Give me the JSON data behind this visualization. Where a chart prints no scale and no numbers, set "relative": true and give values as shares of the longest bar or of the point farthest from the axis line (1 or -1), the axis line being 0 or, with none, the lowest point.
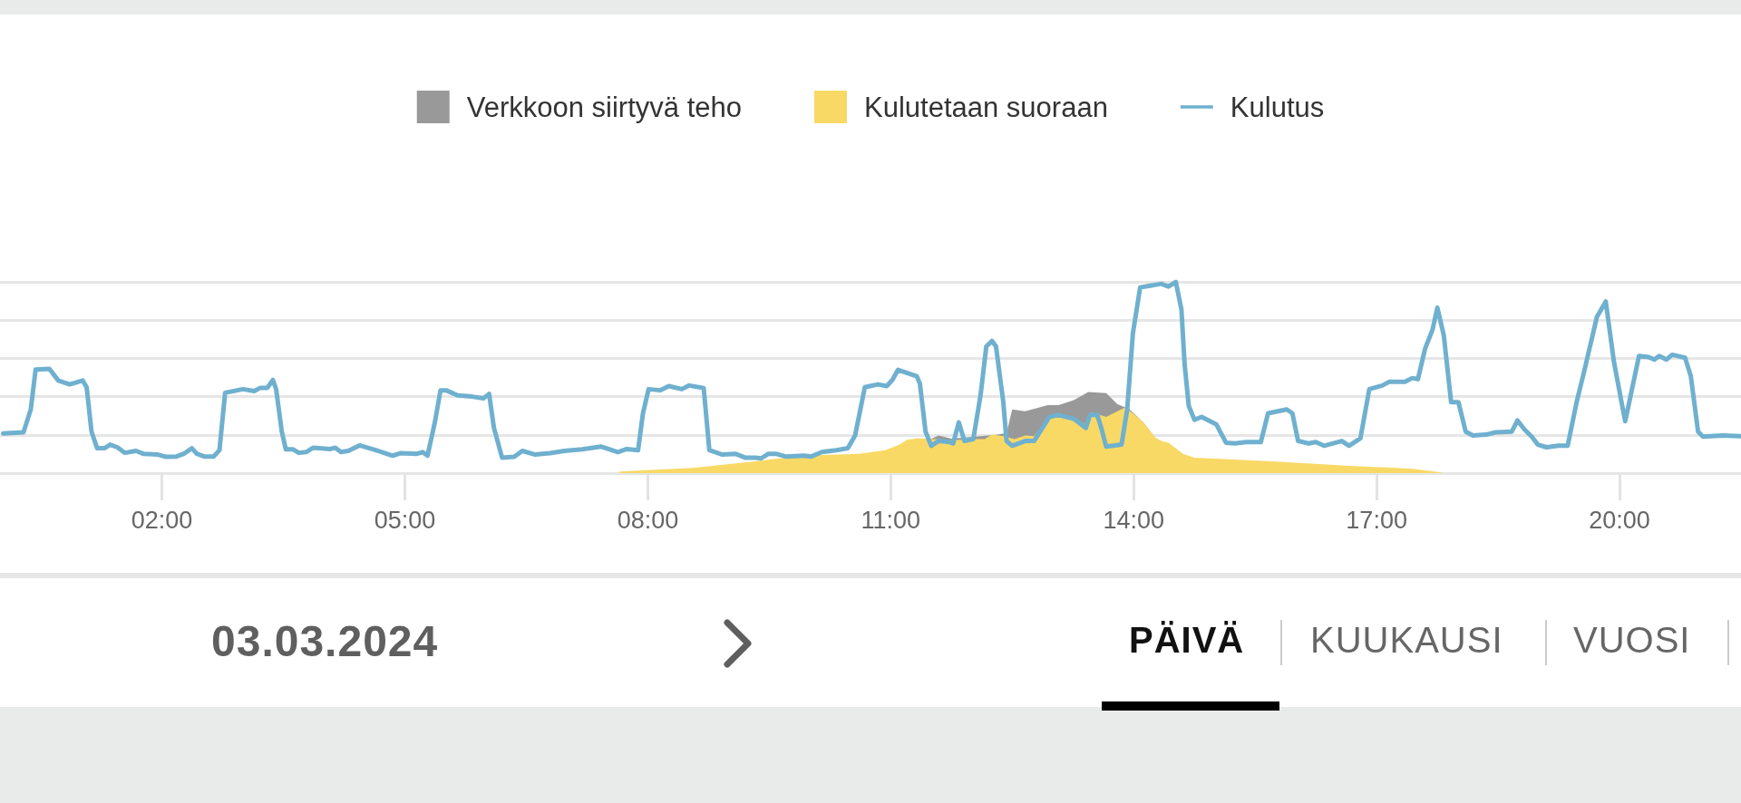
{
  "chart_data": {
    "type": "area",
    "relative": true,
    "grid": "y",
    "legend": "top",
    "xlim": [
      0,
      21.5
    ],
    "xticks": [
      {
        "value": 2,
        "label": "02:00"
      },
      {
        "value": 5,
        "label": "05:00"
      },
      {
        "value": 8,
        "label": "08:00"
      },
      {
        "value": 11,
        "label": "11:00"
      },
      {
        "value": 14,
        "label": "14:00"
      },
      {
        "value": 17,
        "label": "17:00"
      },
      {
        "value": 20,
        "label": "20:00"
      }
    ],
    "annotations": [
      "03.03.2024",
      "PÄIVÄ",
      "KUUKAUSI",
      "VUOSI"
    ],
    "series": [
      {
        "name": "Verkkoon siirtyvä teho",
        "color": "#999999",
        "x": [
          11.45,
          11.59,
          11.75,
          12.3,
          12.43,
          12.5,
          12.66,
          12.94,
          13.07,
          13.26,
          13.44,
          13.66,
          13.8,
          13.94,
          14.12,
          14.26
        ],
        "values": [
          0.17,
          0.197,
          0.18,
          0.2,
          0.21,
          0.333,
          0.323,
          0.356,
          0.356,
          0.381,
          0.424,
          0.418,
          0.36,
          0.336,
          0.265,
          0.188
        ]
      },
      {
        "name": "Kulutetaan suoraan",
        "color": "#f9d966",
        "x": [
          7.65,
          8.56,
          9.25,
          9.7,
          10.15,
          10.61,
          10.93,
          11.11,
          11.2,
          11.34,
          11.75,
          12.02,
          12.16,
          12.25,
          12.39,
          12.53,
          12.66,
          12.77,
          12.96,
          13.26,
          13.41,
          13.48,
          13.66,
          13.89,
          13.99,
          14.12,
          14.26,
          14.34,
          14.43,
          14.61,
          14.75,
          15.71,
          16.62,
          17.44,
          17.8
        ],
        "values": [
          0.008,
          0.027,
          0.058,
          0.081,
          0.095,
          0.101,
          0.12,
          0.149,
          0.174,
          0.182,
          0.172,
          0.178,
          0.178,
          0.201,
          0.193,
          0.178,
          0.197,
          0.193,
          0.294,
          0.284,
          0.255,
          0.317,
          0.294,
          0.342,
          0.313,
          0.265,
          0.188,
          0.168,
          0.159,
          0.101,
          0.081,
          0.062,
          0.039,
          0.023,
          0.004
        ]
      },
      {
        "name": "Kulutus",
        "type": "line",
        "color": "#6fb0cf",
        "x": [
          0.04,
          0.29,
          0.38,
          0.44,
          0.61,
          0.72,
          0.86,
          1.02,
          1.07,
          1.13,
          1.2,
          1.29,
          1.36,
          1.45,
          1.54,
          1.68,
          1.77,
          1.95,
          2.05,
          2.18,
          2.27,
          2.37,
          2.43,
          2.52,
          2.64,
          2.71,
          2.78,
          3.0,
          3.14,
          3.21,
          3.3,
          3.37,
          3.41,
          3.48,
          3.53,
          3.62,
          3.69,
          3.78,
          3.87,
          4.08,
          4.14,
          4.21,
          4.3,
          4.44,
          4.64,
          4.85,
          4.94,
          5.15,
          5.22,
          5.28,
          5.37,
          5.44,
          5.51,
          5.65,
          5.83,
          5.97,
          6.04,
          6.1,
          6.2,
          6.35,
          6.45,
          6.61,
          6.79,
          6.97,
          7.19,
          7.42,
          7.63,
          7.74,
          7.88,
          7.94,
          8.01,
          8.15,
          8.26,
          8.42,
          8.51,
          8.69,
          8.76,
          8.92,
          9.08,
          9.2,
          9.33,
          9.4,
          9.49,
          9.58,
          9.7,
          9.93,
          10.02,
          10.15,
          10.33,
          10.47,
          10.56,
          10.68,
          10.84,
          10.95,
          11.02,
          11.09,
          11.32,
          11.36,
          11.43,
          11.5,
          11.59,
          11.73,
          11.77,
          11.84,
          11.91,
          12.02,
          12.11,
          12.18,
          12.25,
          12.3,
          12.39,
          12.43,
          12.5,
          12.66,
          12.77,
          12.96,
          13.07,
          13.26,
          13.41,
          13.46,
          13.55,
          13.6,
          13.66,
          13.85,
          13.92,
          13.99,
          14.08,
          14.34,
          14.43,
          14.52,
          14.59,
          14.63,
          14.68,
          14.75,
          14.84,
          15.02,
          15.14,
          15.25,
          15.39,
          15.57,
          15.66,
          15.89,
          15.96,
          16.03,
          16.16,
          16.25,
          16.35,
          16.57,
          16.66,
          16.8,
          16.91,
          17.07,
          17.16,
          17.35,
          17.44,
          17.51,
          17.6,
          17.69,
          17.75,
          17.83,
          17.92,
          18.01,
          18.1,
          18.19,
          18.35,
          18.47,
          18.67,
          18.74,
          18.83,
          18.92,
          18.99,
          19.1,
          19.24,
          19.36,
          19.47,
          19.56,
          19.72,
          19.83,
          19.93,
          20.02,
          20.07,
          20.13,
          20.24,
          20.36,
          20.43,
          20.49,
          20.58,
          20.65,
          20.81,
          20.88,
          20.97,
          21.03,
          21.27,
          21.49
        ],
        "values": [
          0.207,
          0.213,
          0.333,
          0.542,
          0.545,
          0.484,
          0.464,
          0.484,
          0.449,
          0.217,
          0.13,
          0.13,
          0.149,
          0.135,
          0.106,
          0.116,
          0.101,
          0.097,
          0.085,
          0.087,
          0.101,
          0.13,
          0.101,
          0.087,
          0.087,
          0.12,
          0.42,
          0.439,
          0.429,
          0.445,
          0.445,
          0.487,
          0.439,
          0.217,
          0.124,
          0.124,
          0.106,
          0.11,
          0.133,
          0.126,
          0.133,
          0.11,
          0.116,
          0.145,
          0.12,
          0.091,
          0.104,
          0.101,
          0.11,
          0.091,
          0.265,
          0.433,
          0.433,
          0.406,
          0.4,
          0.391,
          0.414,
          0.236,
          0.081,
          0.085,
          0.116,
          0.097,
          0.104,
          0.116,
          0.124,
          0.139,
          0.11,
          0.126,
          0.12,
          0.313,
          0.439,
          0.433,
          0.455,
          0.439,
          0.458,
          0.445,
          0.12,
          0.097,
          0.101,
          0.081,
          0.081,
          0.077,
          0.101,
          0.101,
          0.087,
          0.091,
          0.087,
          0.11,
          0.12,
          0.13,
          0.197,
          0.449,
          0.464,
          0.455,
          0.487,
          0.54,
          0.507,
          0.468,
          0.217,
          0.143,
          0.168,
          0.162,
          0.155,
          0.265,
          0.168,
          0.178,
          0.41,
          0.662,
          0.691,
          0.662,
          0.371,
          0.168,
          0.143,
          0.168,
          0.168,
          0.294,
          0.304,
          0.284,
          0.236,
          0.304,
          0.304,
          0.236,
          0.139,
          0.149,
          0.333,
          0.729,
          0.971,
          0.99,
          0.975,
          1,
          0.855,
          0.565,
          0.352,
          0.279,
          0.294,
          0.255,
          0.159,
          0.155,
          0.162,
          0.162,
          0.313,
          0.333,
          0.313,
          0.168,
          0.155,
          0.162,
          0.143,
          0.168,
          0.143,
          0.182,
          0.439,
          0.458,
          0.478,
          0.478,
          0.497,
          0.491,
          0.652,
          0.749,
          0.865,
          0.72,
          0.371,
          0.371,
          0.217,
          0.197,
          0.201,
          0.213,
          0.217,
          0.275,
          0.226,
          0.188,
          0.149,
          0.135,
          0.143,
          0.143,
          0.371,
          0.526,
          0.816,
          0.897,
          0.584,
          0.381,
          0.271,
          0.391,
          0.613,
          0.607,
          0.594,
          0.613,
          0.594,
          0.619,
          0.603,
          0.507,
          0.217,
          0.191,
          0.197,
          0.193
        ]
      }
    ]
  }
}
